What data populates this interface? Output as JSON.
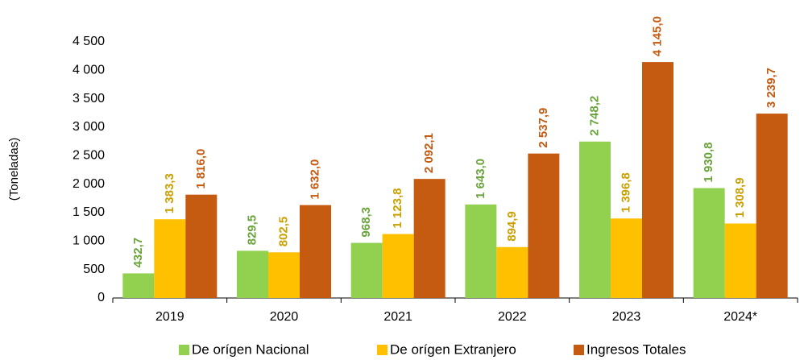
{
  "chart_data": {
    "type": "bar",
    "y_label": "(Toneladas)",
    "categories": [
      "2019",
      "2020",
      "2021",
      "2022",
      "2023",
      "2024*"
    ],
    "series": [
      {
        "name": "De orígen Nacional",
        "color": "#92d050",
        "label_color": "#6aa33a",
        "values": [
          432.7,
          829.5,
          968.3,
          1643.0,
          2748.2,
          1930.8
        ],
        "value_labels": [
          "432,7",
          "829,5",
          "968,3",
          "1 643,0",
          "2 748,2",
          "1 930,8"
        ]
      },
      {
        "name": "De orígen Extranjero",
        "color": "#ffc000",
        "label_color": "#c9a000",
        "values": [
          1383.3,
          802.5,
          1123.8,
          894.9,
          1396.8,
          1308.9
        ],
        "value_labels": [
          "1 383,3",
          "802,5",
          "1 123,8",
          "894,9",
          "1 396,8",
          "1 308,9"
        ]
      },
      {
        "name": "Ingresos Totales",
        "color": "#c55a11",
        "label_color": "#c55a11",
        "values": [
          1816.0,
          1632.0,
          2092.1,
          2537.9,
          4145.0,
          3239.7
        ],
        "value_labels": [
          "1 816,0",
          "1 632,0",
          "2 092,1",
          "2 537,9",
          "4 145,0",
          "3 239,7"
        ]
      }
    ],
    "ylim": [
      0,
      4500
    ],
    "yticks": [
      0,
      500,
      {
        "value": 1000,
        "label": "1 000"
      },
      {
        "value": 1500,
        "label": "1 500"
      },
      {
        "value": 2000,
        "label": "2 000"
      },
      {
        "value": 2500,
        "label": "2 500"
      },
      {
        "value": 3000,
        "label": "3 000"
      },
      {
        "value": 3500,
        "label": "3 500"
      },
      {
        "value": 4000,
        "label": "4 000"
      },
      {
        "value": 4500,
        "label": "4 500"
      }
    ],
    "legend": "bottom"
  }
}
